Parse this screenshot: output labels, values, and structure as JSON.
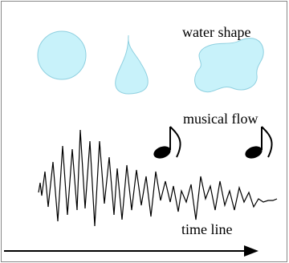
{
  "labels": {
    "water_shape": "water shape",
    "musical_flow": "musical flow",
    "time_line": "time line"
  }
}
